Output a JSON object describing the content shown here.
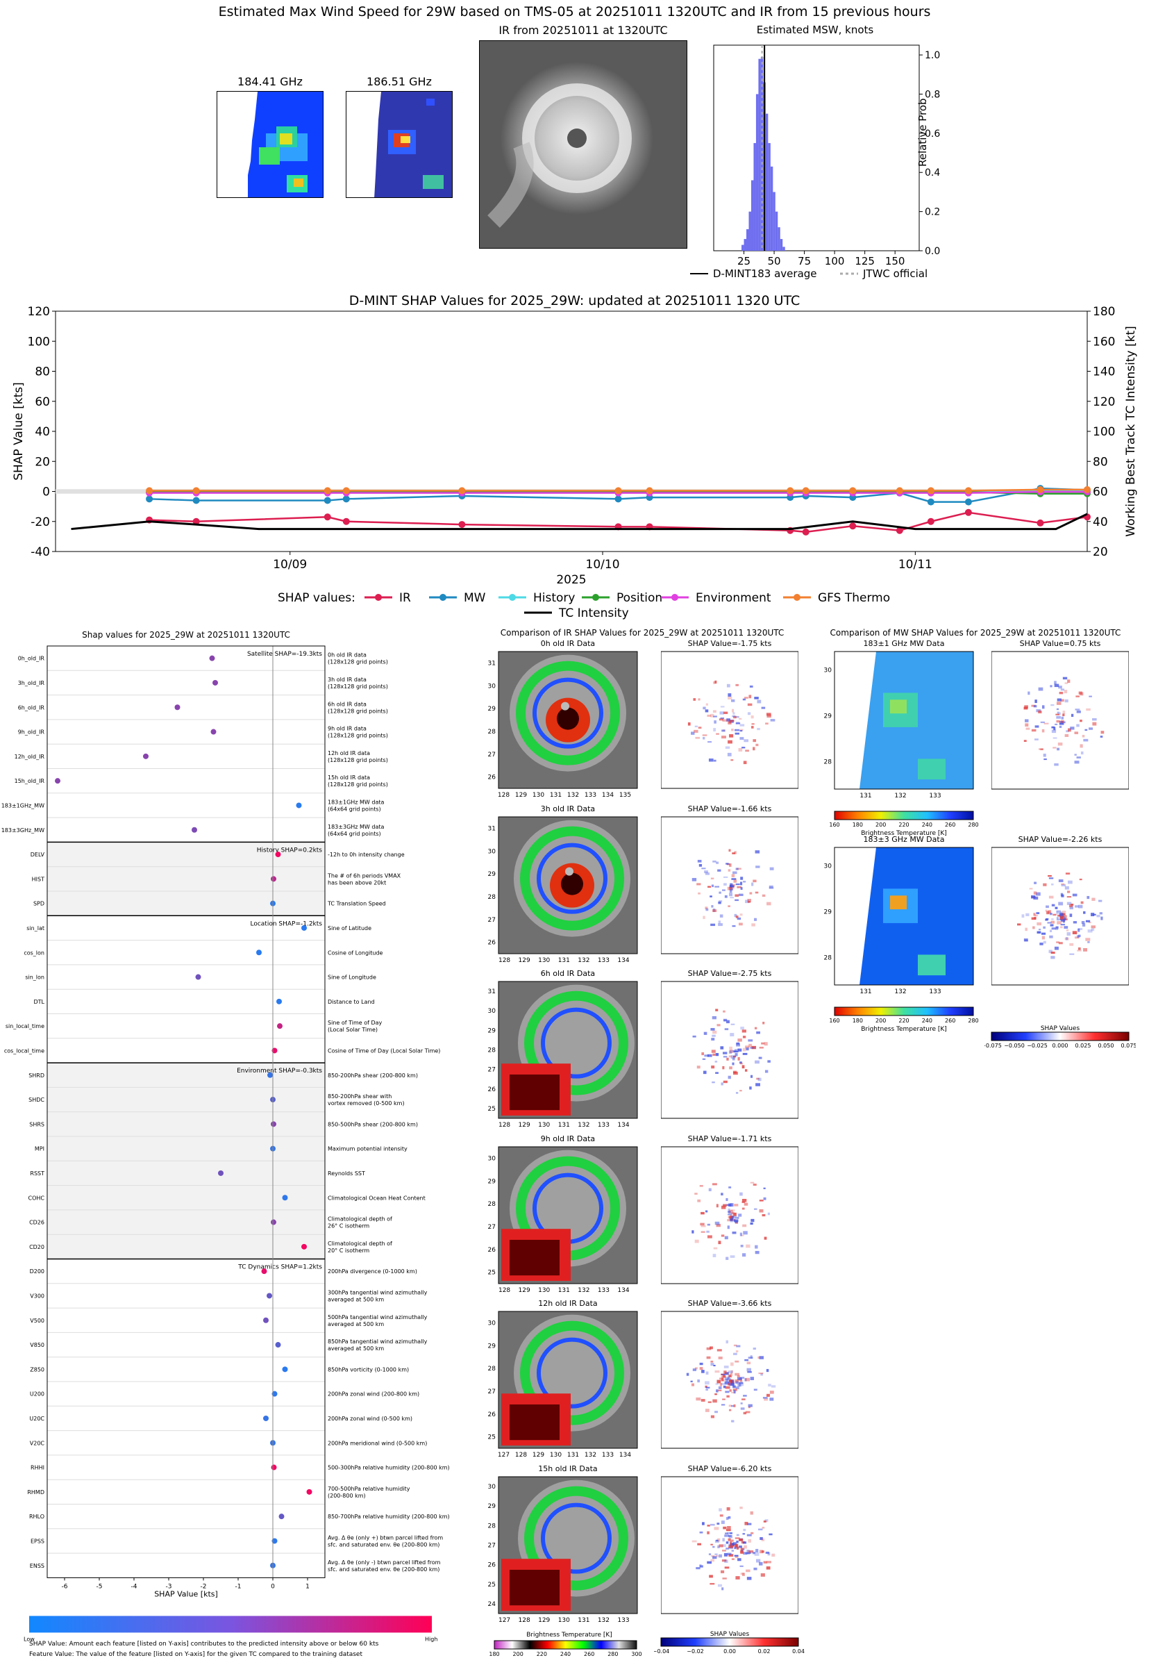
{
  "header": {
    "title": "Estimated Max Wind Speed for 29W based on TMS-05 at 20251011 1320UTC and IR from 15 previous hours",
    "mw1_title": "184.41 GHz",
    "mw2_title": "186.51 GHz",
    "ir_title": "IR from 20251011 at 1320UTC",
    "hist_title": "Estimated MSW, knots",
    "hist_ylabel": "Relative Prob",
    "legend_avg": "D-MINT183 average",
    "legend_jtwc": "JTWC official"
  },
  "colors": {
    "IR": "#dc1e50",
    "MW": "#1f8ac0",
    "History": "#4dd9e6",
    "Position": "#2ca02c",
    "Environment": "#e040e0",
    "GFS Thermo": "#f28030",
    "TC Intensity": "#000000",
    "hist_bar": "#6f6ff0"
  },
  "chart_data": [
    {
      "type": "bar",
      "title": "Estimated MSW, knots",
      "ylabel": "Relative Prob",
      "xlim": [
        0,
        170
      ],
      "ylim": [
        0,
        1.05
      ],
      "xticks": [
        25,
        50,
        75,
        100,
        125,
        150
      ],
      "yticks": [
        0.0,
        0.2,
        0.4,
        0.6,
        0.8,
        1.0
      ],
      "x": [
        24,
        26,
        28,
        30,
        32,
        34,
        36,
        38,
        40,
        42,
        44,
        46,
        48,
        50,
        52,
        54,
        56,
        58
      ],
      "values": [
        0.03,
        0.06,
        0.11,
        0.2,
        0.36,
        0.55,
        0.8,
        0.98,
        0.99,
        0.86,
        0.7,
        0.55,
        0.43,
        0.3,
        0.2,
        0.12,
        0.06,
        0.02
      ],
      "d_mint_average": 42,
      "jtwc_official": 40
    },
    {
      "type": "line",
      "title": "D-MINT SHAP Values for 2025_29W: updated at 20251011 1320 UTC",
      "xlabel": "2025",
      "ylabel": "SHAP Value [kts]",
      "y2label": "Working Best Track TC Intensity [kt]",
      "ylim": [
        -40,
        120
      ],
      "y2lim": [
        20,
        180
      ],
      "yticks": [
        -40,
        -20,
        0,
        20,
        40,
        60,
        80,
        100,
        120
      ],
      "y2ticks": [
        20,
        40,
        60,
        80,
        100,
        120,
        140,
        160,
        180
      ],
      "xlim": [
        8.25,
        11.55
      ],
      "xticks": [
        {
          "v": 9,
          "label": "10/09"
        },
        {
          "v": 10,
          "label": "10/10"
        },
        {
          "v": 11,
          "label": "10/11"
        }
      ],
      "legend_title": "SHAP values:",
      "series": [
        {
          "name": "IR",
          "x": [
            8.55,
            8.7,
            9.12,
            9.18,
            9.55,
            10.05,
            10.15,
            10.6,
            10.65,
            10.8,
            10.95,
            11.05,
            11.17,
            11.4,
            11.55
          ],
          "values": [
            -19,
            -20,
            -17,
            -20,
            -22,
            -23.5,
            -23.5,
            -26,
            -27,
            -23,
            -26,
            -20,
            -14,
            -21,
            -17
          ]
        },
        {
          "name": "MW",
          "x": [
            8.55,
            8.7,
            9.12,
            9.18,
            9.55,
            10.05,
            10.15,
            10.6,
            10.65,
            10.8,
            10.95,
            11.05,
            11.17,
            11.4,
            11.55
          ],
          "values": [
            -5,
            -6,
            -6,
            -5,
            -3,
            -5,
            -4,
            -4,
            -3,
            -4,
            -1,
            -7,
            -7,
            2,
            1
          ]
        },
        {
          "name": "History",
          "x": [
            8.55,
            8.7,
            9.12,
            9.18,
            9.55,
            10.05,
            10.15,
            10.6,
            10.65,
            10.8,
            10.95,
            11.05,
            11.17,
            11.4,
            11.55
          ],
          "values": [
            0,
            0,
            0,
            0,
            0,
            0,
            0,
            0,
            0,
            0,
            0,
            0,
            0,
            0.3,
            0.3
          ]
        },
        {
          "name": "Position",
          "x": [
            8.55,
            8.7,
            9.12,
            9.18,
            9.55,
            10.05,
            10.15,
            10.6,
            10.65,
            10.8,
            10.95,
            11.05,
            11.17,
            11.4,
            11.55
          ],
          "values": [
            -0.5,
            -0.5,
            -0.5,
            -0.5,
            -0.5,
            -0.5,
            -0.5,
            -0.5,
            -0.5,
            -0.5,
            -0.5,
            -0.5,
            -0.5,
            -1.5,
            -1.5
          ]
        },
        {
          "name": "Environment",
          "x": [
            8.55,
            8.7,
            9.12,
            9.18,
            9.55,
            10.05,
            10.15,
            10.6,
            10.65,
            10.8,
            10.95,
            11.05,
            11.17,
            11.4,
            11.55
          ],
          "values": [
            -1,
            -1,
            -1,
            -1,
            -1,
            -1,
            -1,
            -1,
            -1,
            -1,
            -1,
            -1,
            -1,
            -0.3,
            -0.3
          ]
        },
        {
          "name": "GFS Thermo",
          "x": [
            8.55,
            8.7,
            9.12,
            9.18,
            9.55,
            10.05,
            10.15,
            10.6,
            10.65,
            10.8,
            10.95,
            11.05,
            11.17,
            11.4,
            11.55
          ],
          "values": [
            0.5,
            0.5,
            0.5,
            0.5,
            0.5,
            0.5,
            0.5,
            0.5,
            0.5,
            0.5,
            0.5,
            0.5,
            0.5,
            1.2,
            1.2
          ]
        },
        {
          "name": "TC Intensity",
          "axis": "y2",
          "x": [
            8.3,
            8.55,
            8.7,
            8.9,
            9.2,
            9.5,
            10.0,
            10.3,
            10.6,
            10.8,
            11.0,
            11.2,
            11.45,
            11.55
          ],
          "values": [
            35,
            40,
            38,
            35,
            35,
            35,
            35,
            35,
            35,
            40,
            35,
            35,
            35,
            45
          ]
        }
      ]
    },
    {
      "type": "scatter",
      "title": "Shap values for 2025_29W at 20251011 1320UTC",
      "xlabel": "SHAP Value [kts]",
      "xlim": [
        -6.5,
        1.5
      ],
      "xticks": [
        -6,
        -5,
        -4,
        -3,
        -2,
        -1,
        0,
        1
      ],
      "colorbar": {
        "low": "Low",
        "high": "High"
      },
      "groups": [
        {
          "label": "Satellite SHAP=-19.3kts",
          "shaded": false,
          "rows": [
            {
              "name": "0h_old_IR",
              "desc1": "0h old IR data",
              "desc2": "(128x128 grid points)",
              "value": -1.75,
              "c": 0.5
            },
            {
              "name": "3h_old_IR",
              "desc1": "3h old IR data",
              "desc2": "(128x128 grid points)",
              "value": -1.66,
              "c": 0.5
            },
            {
              "name": "6h_old_IR",
              "desc1": "6h old IR data",
              "desc2": "(128x128 grid points)",
              "value": -2.75,
              "c": 0.5
            },
            {
              "name": "9h_old_IR",
              "desc1": "9h old IR data",
              "desc2": "(128x128 grid points)",
              "value": -1.71,
              "c": 0.5
            },
            {
              "name": "12h_old_IR",
              "desc1": "12h old IR data",
              "desc2": "(128x128 grid points)",
              "value": -3.66,
              "c": 0.5
            },
            {
              "name": "15h_old_IR",
              "desc1": "15h old IR data",
              "desc2": "(128x128 grid points)",
              "value": -6.2,
              "c": 0.5
            },
            {
              "name": "183±1GHz_MW",
              "desc1": "183±1GHz MW data",
              "desc2": "(64x64 grid points)",
              "value": 0.75,
              "c": 0.1
            },
            {
              "name": "183±3GHz_MW",
              "desc1": "183±3GHz MW data",
              "desc2": "(64x64 grid points)",
              "value": -2.26,
              "c": 0.45
            }
          ]
        },
        {
          "label": "History SHAP=0.2kts",
          "shaded": true,
          "rows": [
            {
              "name": "DELV",
              "desc1": "-12h to 0h intensity change",
              "desc2": "",
              "value": 0.15,
              "c": 0.95
            },
            {
              "name": "HIST",
              "desc1": "The # of 6h periods VMAX",
              "desc2": "has been above 20kt",
              "value": 0.02,
              "c": 0.7
            },
            {
              "name": "SPD",
              "desc1": "TC Translation Speed",
              "desc2": "",
              "value": 0.0,
              "c": 0.1
            }
          ]
        },
        {
          "label": "Location SHAP=-1.2kts",
          "shaded": false,
          "rows": [
            {
              "name": "sin_lat",
              "desc1": "Sine of Latitude",
              "desc2": "",
              "value": 0.9,
              "c": 0.1
            },
            {
              "name": "cos_lon",
              "desc1": "Cosine of Longitude",
              "desc2": "",
              "value": -0.4,
              "c": 0.1
            },
            {
              "name": "sin_lon",
              "desc1": "Sine of Longitude",
              "desc2": "",
              "value": -2.15,
              "c": 0.4
            },
            {
              "name": "DTL",
              "desc1": "Distance to Land",
              "desc2": "",
              "value": 0.18,
              "c": 0.1
            },
            {
              "name": "sin_local_time",
              "desc1": "Sine of Time of Day",
              "desc2": "(Local Solar Time)",
              "value": 0.2,
              "c": 0.75
            },
            {
              "name": "cos_local_time",
              "desc1": "Cosine of Time of Day (Local Solar Time)",
              "desc2": "",
              "value": 0.05,
              "c": 0.9
            }
          ]
        },
        {
          "label": "Environment SHAP=-0.3kts",
          "shaded": true,
          "rows": [
            {
              "name": "SHRD",
              "desc1": "850-200hPa shear (200-800 km)",
              "desc2": "",
              "value": -0.08,
              "c": 0.15
            },
            {
              "name": "SHDC",
              "desc1": "850-200hPa shear with",
              "desc2": "vortex removed (0-500 km)",
              "value": 0.0,
              "c": 0.3
            },
            {
              "name": "SHRS",
              "desc1": "850-500hPa shear (200-800 km)",
              "desc2": "",
              "value": 0.02,
              "c": 0.5
            },
            {
              "name": "MPI",
              "desc1": "Maximum potential intensity",
              "desc2": "",
              "value": 0.0,
              "c": 0.15
            },
            {
              "name": "RSST",
              "desc1": "Reynolds SST",
              "desc2": "",
              "value": -1.5,
              "c": 0.4
            },
            {
              "name": "COHC",
              "desc1": "Climatological Ocean Heat Content",
              "desc2": "",
              "value": 0.35,
              "c": 0.12
            },
            {
              "name": "CD26",
              "desc1": "Climatological depth of",
              "desc2": "26° C isotherm",
              "value": 0.02,
              "c": 0.5
            },
            {
              "name": "CD20",
              "desc1": "Climatological depth of",
              "desc2": "20° C isotherm",
              "value": 0.9,
              "c": 0.95
            }
          ]
        },
        {
          "label": "TC Dynamics SHAP=1.2kts",
          "shaded": false,
          "rows": [
            {
              "name": "D200",
              "desc1": "200hPa divergence (0-1000 km)",
              "desc2": "",
              "value": -0.25,
              "c": 0.9
            },
            {
              "name": "V300",
              "desc1": "300hPa tangential wind azimuthally",
              "desc2": "averaged at 500 km",
              "value": -0.1,
              "c": 0.35
            },
            {
              "name": "V500",
              "desc1": "500hPa tangential wind azimuthally",
              "desc2": "averaged at 500 km",
              "value": -0.2,
              "c": 0.4
            },
            {
              "name": "V850",
              "desc1": "850hPa tangential wind azimuthally",
              "desc2": "averaged at 500 km",
              "value": 0.15,
              "c": 0.3
            },
            {
              "name": "Z850",
              "desc1": "850hPa vorticity (0-1000 km)",
              "desc2": "",
              "value": 0.35,
              "c": 0.1
            },
            {
              "name": "U200",
              "desc1": "200hPa zonal wind (200-800 km)",
              "desc2": "",
              "value": 0.05,
              "c": 0.12
            },
            {
              "name": "U20C",
              "desc1": "200hPa zonal wind (0-500 km)",
              "desc2": "",
              "value": -0.2,
              "c": 0.15
            },
            {
              "name": "V20C",
              "desc1": "200hPa meridional wind (0-500 km)",
              "desc2": "",
              "value": 0.0,
              "c": 0.15
            },
            {
              "name": "RHHI",
              "desc1": "500-300hPa relative humidity (200-800 km)",
              "desc2": "",
              "value": 0.03,
              "c": 0.95
            },
            {
              "name": "RHMD",
              "desc1": "700-500hPa relative humidity",
              "desc2": "(200-800 km)",
              "value": 1.05,
              "c": 0.95
            },
            {
              "name": "RHLO",
              "desc1": "850-700hPa relative humidity (200-800 km)",
              "desc2": "",
              "value": 0.25,
              "c": 0.35
            },
            {
              "name": "EPSS",
              "desc1": "Avg. Δ θe (only +) btwn parcel lifted from",
              "desc2": "sfc. and saturated env. θe (200-800 km)",
              "value": 0.05,
              "c": 0.12
            },
            {
              "name": "ENSS",
              "desc1": "Avg. Δ θe (only -) btwn parcel lifted from",
              "desc2": "sfc. and saturated env. θe (200-800 km)",
              "value": 0.0,
              "c": 0.15
            }
          ]
        }
      ]
    }
  ],
  "ir_comparison": {
    "title": "Comparison of IR SHAP Values for 2025_29W at 20251011 1320UTC",
    "panels": [
      {
        "title": "0h old IR Data",
        "shap": "SHAP Value=-1.75 kts",
        "lat": [
          "31",
          "30",
          "29",
          "28",
          "27",
          "26"
        ],
        "lon": [
          "128",
          "129",
          "130",
          "131",
          "132",
          "133",
          "134",
          "135"
        ]
      },
      {
        "title": "3h old IR Data",
        "shap": "SHAP Value=-1.66 kts",
        "lat": [
          "31",
          "30",
          "29",
          "28",
          "27",
          "26"
        ],
        "lon": [
          "128",
          "129",
          "130",
          "131",
          "132",
          "133",
          "134"
        ]
      },
      {
        "title": "6h old IR Data",
        "shap": "SHAP Value=-2.75 kts",
        "lat": [
          "31",
          "30",
          "29",
          "28",
          "27",
          "26",
          "25"
        ],
        "lon": [
          "128",
          "129",
          "130",
          "131",
          "132",
          "133",
          "134"
        ]
      },
      {
        "title": "9h old IR Data",
        "shap": "SHAP Value=-1.71 kts",
        "lat": [
          "30",
          "29",
          "28",
          "27",
          "26",
          "25"
        ],
        "lon": [
          "128",
          "129",
          "130",
          "131",
          "132",
          "133",
          "134"
        ]
      },
      {
        "title": "12h old IR Data",
        "shap": "SHAP Value=-3.66 kts",
        "lat": [
          "30",
          "29",
          "28",
          "27",
          "26",
          "25"
        ],
        "lon": [
          "127",
          "128",
          "129",
          "130",
          "131",
          "132",
          "133",
          "134"
        ]
      },
      {
        "title": "15h old IR Data",
        "shap": "SHAP Value=-6.20 kts",
        "lat": [
          "30",
          "29",
          "28",
          "27",
          "26",
          "25",
          "24"
        ],
        "lon": [
          "127",
          "128",
          "129",
          "130",
          "131",
          "132",
          "133"
        ]
      }
    ],
    "bt_label": "Brightness Temperature [K]",
    "bt_ticks": [
      "180",
      "200",
      "220",
      "240",
      "260",
      "280",
      "300"
    ],
    "shap_label": "SHAP Values",
    "shap_ticks": [
      "−0.04",
      "−0.02",
      "0.00",
      "0.02",
      "0.04"
    ]
  },
  "mw_comparison": {
    "title": "Comparison of MW SHAP Values for 2025_29W at 20251011 1320UTC",
    "panels": [
      {
        "title": "183±1 GHz MW Data",
        "shap": "SHAP Value=0.75 kts",
        "lat": [
          "30",
          "29",
          "28"
        ],
        "lon": [
          "131",
          "132",
          "133"
        ]
      },
      {
        "title": "183±3 GHz MW Data",
        "shap": "SHAP Value=-2.26 kts",
        "lat": [
          "30",
          "29",
          "28"
        ],
        "lon": [
          "131",
          "132",
          "133"
        ]
      }
    ],
    "bt_label": "Brightness Temperature [K]",
    "bt_ticks": [
      "160",
      "180",
      "200",
      "220",
      "240",
      "260",
      "280"
    ],
    "shap_label": "SHAP Values",
    "shap_ticks": [
      "−0.075",
      "−0.050",
      "−0.025",
      "0.000",
      "0.025",
      "0.050",
      "0.075"
    ]
  },
  "footer": {
    "line1": "SHAP Value: Amount each feature [listed on Y-axis] contributes to the predicted intensity above or below 60 kts",
    "line2": "Feature Value: The value of the feature [listed on Y-axis] for the given TC compared to the training dataset"
  }
}
